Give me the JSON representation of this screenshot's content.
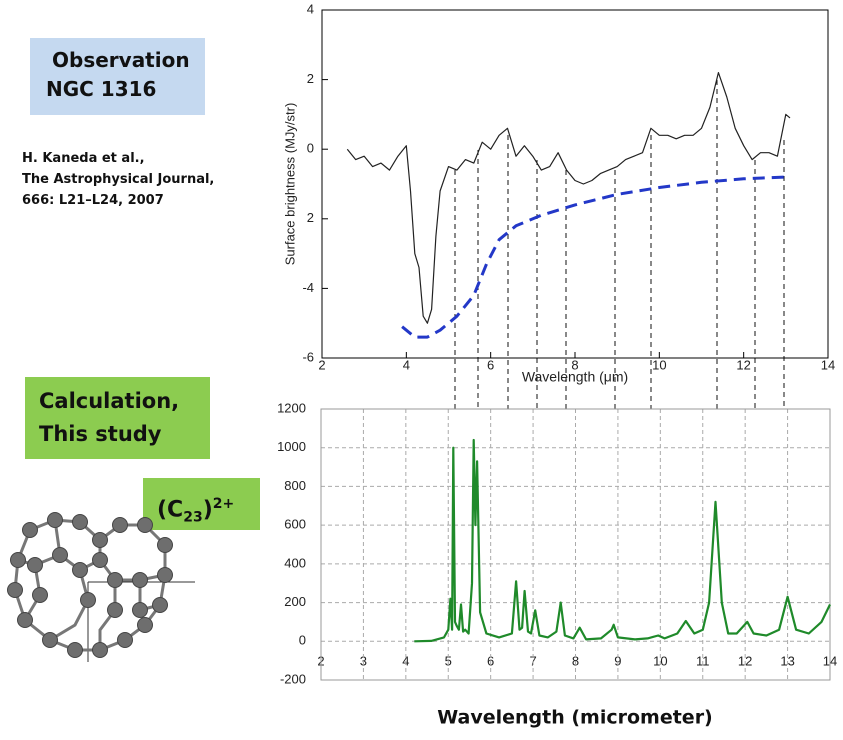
{
  "observation_box": {
    "line1": "Observation",
    "line2": "NGC 1316"
  },
  "citation": {
    "line1": "H. Kaneda et al.,",
    "line2": "The Astrophysical Journal,",
    "line3": "666: L21–L24, 2007"
  },
  "calculation_box": {
    "line1": "Calculation,",
    "line2": "This study"
  },
  "molecule_label": {
    "open": "(C",
    "sub": "23",
    "close": ")",
    "sup": "2+"
  },
  "chart_data": [
    {
      "type": "line",
      "x_label": "Wavelength (μm)",
      "y_label": "Surface brightness (MJy/str)",
      "xlim": [
        2,
        14
      ],
      "ylim": [
        -6,
        4
      ],
      "xticks": [
        2,
        4,
        6,
        8,
        10,
        12,
        14
      ],
      "yticks": [
        4,
        2,
        0,
        {
          "value": -2,
          "label": "2"
        },
        -4,
        -6
      ],
      "grid": false,
      "series": [
        {
          "color": "#222222",
          "dash": "solid",
          "x": [
            2.6,
            2.8,
            3.0,
            3.2,
            3.4,
            3.6,
            3.8,
            4.0,
            4.1,
            4.2,
            4.3,
            4.4,
            4.5,
            4.6,
            4.7,
            4.8,
            5.0,
            5.2,
            5.4,
            5.6,
            5.8,
            6.0,
            6.2,
            6.4,
            6.6,
            6.8,
            7.0,
            7.2,
            7.4,
            7.6,
            7.8,
            8.0,
            8.2,
            8.4,
            8.6,
            8.8,
            9.0,
            9.2,
            9.4,
            9.6,
            9.8,
            10.0,
            10.2,
            10.4,
            10.6,
            10.8,
            11.0,
            11.2,
            11.4,
            11.6,
            11.8,
            12.0,
            12.2,
            12.4,
            12.6,
            12.8,
            13.0,
            13.1
          ],
          "values": [
            0,
            -0.3,
            -0.2,
            -0.5,
            -0.4,
            -0.6,
            -0.2,
            0.1,
            -1.2,
            -3.0,
            -3.4,
            -4.8,
            -5.0,
            -4.6,
            -2.5,
            -1.2,
            -0.5,
            -0.6,
            -0.3,
            -0.4,
            0.2,
            0.0,
            0.4,
            0.6,
            -0.2,
            0.1,
            -0.2,
            -0.6,
            -0.5,
            -0.1,
            -0.6,
            -0.9,
            -1.0,
            -0.9,
            -0.7,
            -0.6,
            -0.5,
            -0.3,
            -0.2,
            -0.1,
            0.6,
            0.4,
            0.4,
            0.3,
            0.4,
            0.4,
            0.6,
            1.2,
            2.2,
            1.5,
            0.6,
            0.1,
            -0.3,
            -0.1,
            -0.1,
            -0.2,
            1.0,
            0.9
          ]
        },
        {
          "color": "#2338c8",
          "dash": "dashed",
          "x": [
            3.9,
            4.2,
            4.5,
            4.8,
            5.2,
            5.6,
            5.9,
            6.2,
            6.6,
            7.2,
            8,
            9,
            10,
            11,
            12,
            13
          ],
          "values": [
            -5.1,
            -5.4,
            -5.4,
            -5.2,
            -4.8,
            -4.2,
            -3.3,
            -2.6,
            -2.2,
            -1.9,
            -1.6,
            -1.3,
            -1.1,
            -0.95,
            -0.85,
            -0.8
          ]
        }
      ]
    },
    {
      "type": "line",
      "x_label": "Wavelength (micrometer)",
      "xlim": [
        2,
        14
      ],
      "ylim": [
        -200,
        1200
      ],
      "xticks": [
        2,
        3,
        4,
        5,
        6,
        7,
        8,
        9,
        10,
        11,
        12,
        13,
        14
      ],
      "yticks": [
        -200,
        0,
        200,
        400,
        600,
        800,
        1000,
        1200
      ],
      "grid": true,
      "series": [
        {
          "color": "#1f8a2a",
          "dash": "solid",
          "x": [
            4.2,
            4.6,
            4.9,
            5.0,
            5.05,
            5.09,
            5.12,
            5.16,
            5.2,
            5.25,
            5.3,
            5.35,
            5.4,
            5.48,
            5.56,
            5.6,
            5.64,
            5.68,
            5.75,
            5.9,
            6.2,
            6.5,
            6.6,
            6.68,
            6.74,
            6.8,
            6.88,
            6.95,
            7.05,
            7.15,
            7.35,
            7.55,
            7.65,
            7.75,
            7.95,
            8.1,
            8.25,
            8.6,
            8.85,
            8.9,
            9.0,
            9.4,
            9.7,
            9.95,
            10.1,
            10.4,
            10.6,
            10.8,
            11.0,
            11.15,
            11.3,
            11.45,
            11.6,
            11.8,
            12.05,
            12.2,
            12.5,
            12.8,
            13.0,
            13.2,
            13.5,
            13.8,
            14.0
          ],
          "values": [
            0,
            2,
            20,
            60,
            220,
            60,
            1000,
            100,
            80,
            60,
            190,
            50,
            60,
            40,
            300,
            1040,
            600,
            930,
            150,
            40,
            20,
            40,
            310,
            60,
            70,
            260,
            50,
            40,
            160,
            30,
            20,
            50,
            200,
            30,
            15,
            70,
            10,
            15,
            60,
            85,
            20,
            10,
            15,
            30,
            15,
            40,
            105,
            40,
            60,
            200,
            720,
            200,
            40,
            40,
            100,
            40,
            30,
            60,
            230,
            60,
            40,
            100,
            190
          ]
        }
      ]
    }
  ]
}
